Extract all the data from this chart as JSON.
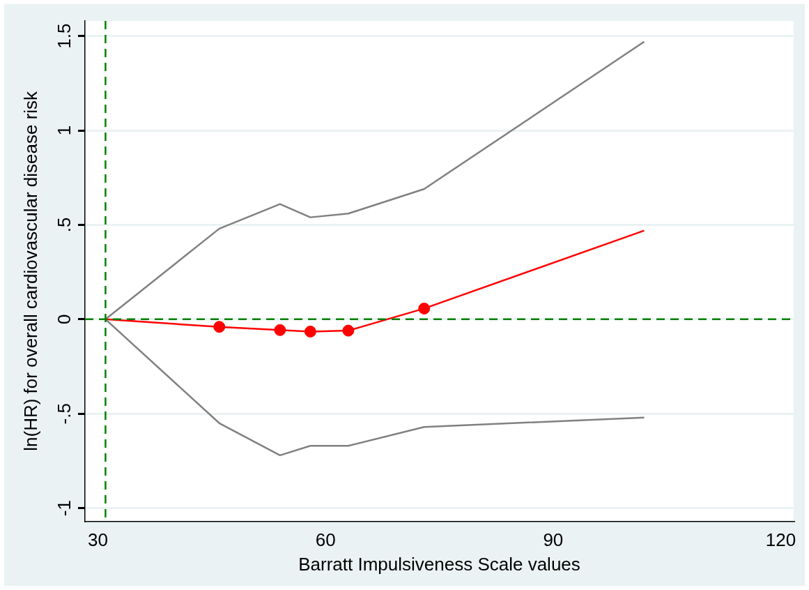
{
  "chart_data": {
    "type": "line",
    "xlabel": "Barratt Impulsiveness Scale values",
    "ylabel": "ln(HR) for overall cardiovascular disease risk",
    "xlim": [
      28.3,
      121.7
    ],
    "xticks": [
      30,
      60,
      90,
      120
    ],
    "ylim": [
      -1.07,
      1.58
    ],
    "yticks": [
      {
        "value": -1,
        "label": "-1"
      },
      {
        "value": -0.5,
        "label": "-.5"
      },
      0,
      {
        "value": 0.5,
        "label": ".5"
      },
      1,
      1.5
    ],
    "grid": "y",
    "legend": false,
    "line_style": "solid",
    "series": [
      {
        "color": "#808080",
        "x": [
          31,
          46,
          54,
          58,
          63,
          73,
          102
        ],
        "values": [
          0,
          0.48,
          0.61,
          0.54,
          0.56,
          0.69,
          1.47
        ],
        "marker": "none"
      },
      {
        "color": "#808080",
        "x": [
          31,
          46,
          54,
          58,
          63,
          73,
          102
        ],
        "values": [
          0,
          -0.55,
          -0.72,
          -0.67,
          -0.67,
          -0.57,
          -0.52
        ],
        "marker": "none"
      },
      {
        "color": "#ff0000",
        "x": [
          31,
          46,
          54,
          58,
          63,
          73,
          102
        ],
        "values": [
          0,
          -0.04,
          -0.057,
          -0.065,
          -0.06,
          0.057,
          0.47
        ],
        "marker": "none"
      },
      {
        "type": "scatter",
        "color": "#ff0000",
        "x": [
          46,
          54,
          58,
          63,
          73
        ],
        "values": [
          -0.04,
          -0.057,
          -0.065,
          -0.06,
          0.057
        ],
        "marker": "circle"
      }
    ],
    "ref_lines": [
      {
        "axis": "x",
        "value": 31,
        "color": "#008000",
        "line_style": "dashed"
      },
      {
        "axis": "y",
        "value": 0,
        "color": "#008000",
        "line_style": "dashed"
      }
    ]
  }
}
